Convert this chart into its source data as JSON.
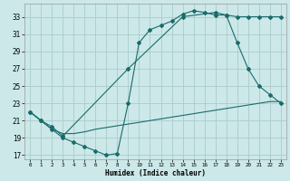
{
  "xlabel": "Humidex (Indice chaleur)",
  "bg_color": "#cce8e8",
  "grid_color": "#aacccc",
  "line_color": "#1a6b6b",
  "xlim": [
    -0.5,
    23.5
  ],
  "ylim": [
    16.5,
    34.5
  ],
  "yticks": [
    17,
    19,
    21,
    23,
    25,
    27,
    29,
    31,
    33
  ],
  "xticks": [
    0,
    1,
    2,
    3,
    4,
    5,
    6,
    7,
    8,
    9,
    10,
    11,
    12,
    13,
    14,
    15,
    16,
    17,
    18,
    19,
    20,
    21,
    22,
    23
  ],
  "line1_x": [
    0,
    1,
    2,
    3,
    4,
    5,
    6,
    7,
    8,
    9,
    10,
    11,
    12,
    13,
    14,
    15,
    16,
    17,
    18,
    19,
    20,
    21,
    22,
    23
  ],
  "line1_y": [
    22,
    21,
    20,
    19,
    18.5,
    18,
    17.5,
    17,
    17.2,
    23,
    30,
    31.5,
    32,
    32.5,
    33.3,
    33.7,
    33.5,
    33.2,
    33.2,
    30.0,
    27.0,
    25.0,
    24.0,
    23.0
  ],
  "line2_x": [
    0,
    1,
    2,
    3,
    9,
    14,
    17,
    18,
    19,
    20,
    21,
    22,
    23
  ],
  "line2_y": [
    22,
    21,
    20.3,
    19.2,
    27.0,
    33.0,
    33.5,
    33.2,
    33.0,
    33.0,
    33.0,
    33.0,
    33.0
  ],
  "line3_x": [
    0,
    1,
    2,
    3,
    4,
    5,
    6,
    7,
    8,
    9,
    10,
    11,
    12,
    13,
    14,
    15,
    16,
    17,
    18,
    19,
    20,
    21,
    22,
    23
  ],
  "line3_y": [
    22,
    21,
    20.0,
    19.5,
    19.5,
    19.7,
    20.0,
    20.2,
    20.4,
    20.6,
    20.8,
    21.0,
    21.2,
    21.4,
    21.6,
    21.8,
    22.0,
    22.2,
    22.4,
    22.6,
    22.8,
    23.0,
    23.2,
    23.2
  ]
}
